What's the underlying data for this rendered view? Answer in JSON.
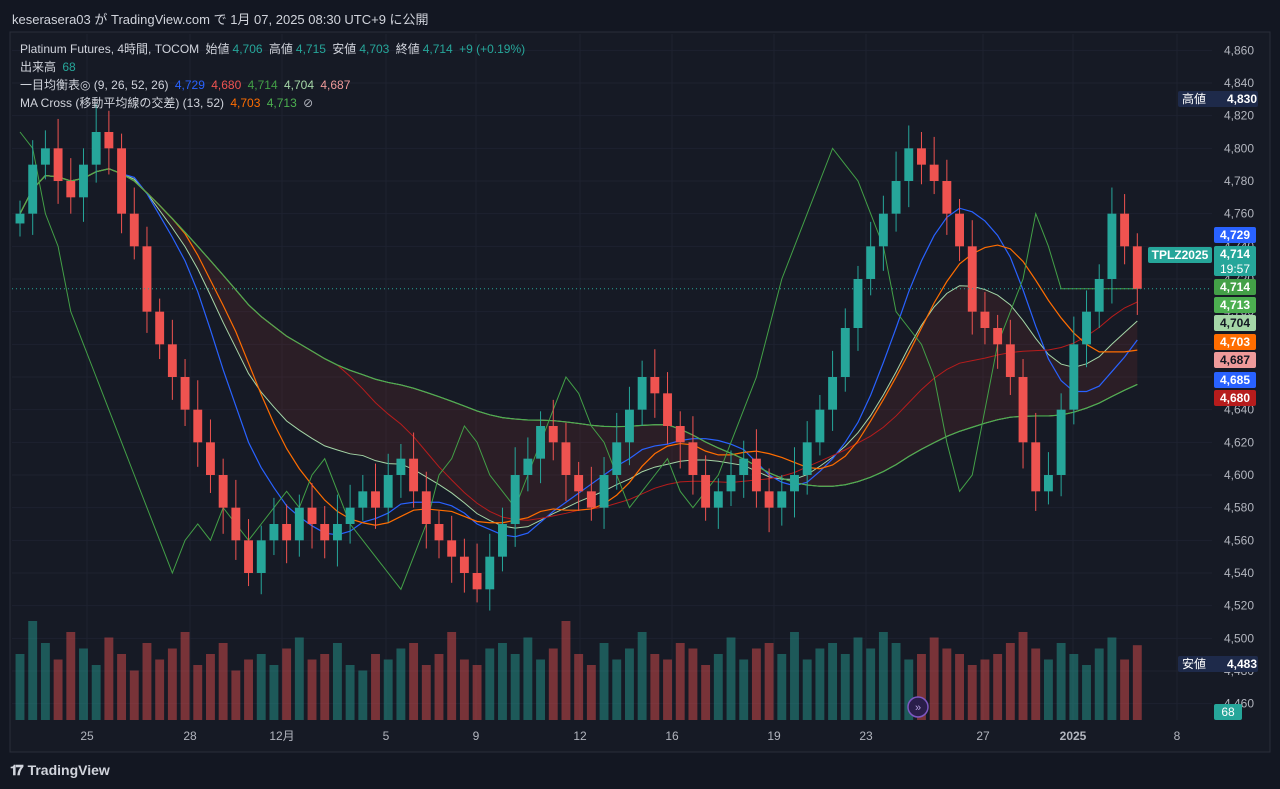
{
  "header": {
    "publish_text": "keserasera03 が TradingView.com で 1月 07, 2025 08:30 UTC+9 に公開"
  },
  "legend": {
    "symbol_line": {
      "name": "Platinum Futures, 4時間, TOCOM",
      "o_label": "始値",
      "o": "4,706",
      "h_label": "高値",
      "h": "4,715",
      "l_label": "安値",
      "l": "4,703",
      "c_label": "終値",
      "c": "4,714",
      "chg": "+9 (+0.19%)"
    },
    "volume_line": {
      "name": "出来高",
      "value": "68"
    },
    "ichimoku_line": {
      "name": "一目均衡表◎ (9, 26, 52, 26)",
      "v1": "4,729",
      "v2": "4,680",
      "v3": "4,714",
      "v4": "4,704",
      "v5": "4,687"
    },
    "ma_line": {
      "name": "MA Cross (移動平均線の交差) (13, 52)",
      "v1": "4,703",
      "v2": "4,713",
      "icon": "⊘"
    }
  },
  "colors": {
    "up": "#26a69a",
    "down": "#ef5350",
    "bg": "#161a25",
    "tenkan": "#2962ff",
    "kijun": "#b71c1c",
    "chikou": "#43a047",
    "spanA": "#a5d6a7",
    "spanB": "#ef9a9a",
    "ma_fast": "#ff6d00",
    "ma_slow": "#4caf50"
  },
  "price_axis": {
    "ticks": [
      "4,860",
      "4,840",
      "4,820",
      "4,800",
      "4,780",
      "4,760",
      "4,740",
      "4,720",
      "4,700",
      "4,680",
      "4,660",
      "4,640",
      "4,620",
      "4,600",
      "4,580",
      "4,560",
      "4,540",
      "4,520",
      "4,500",
      "4,480",
      "4,460"
    ]
  },
  "time_axis": {
    "ticks": [
      "25",
      "28",
      "12月",
      "5",
      "9",
      "12",
      "16",
      "19",
      "23",
      "27",
      "2025",
      "8"
    ]
  },
  "labels": {
    "high": {
      "caption": "高値",
      "value": "4,830"
    },
    "low": {
      "caption": "安値",
      "value": "4,483"
    },
    "symbol_tag": "TPLZ2025",
    "last_price": "4,714",
    "countdown": "19:57",
    "badges": [
      {
        "value": "4,729",
        "color": "#2962ff"
      },
      {
        "value": "4,714",
        "color": "#43a047"
      },
      {
        "value": "4,713",
        "color": "#4caf50"
      },
      {
        "value": "4,704",
        "color": "#a5d6a7"
      },
      {
        "value": "4,703",
        "color": "#ff6d00"
      },
      {
        "value": "4,687",
        "color": "#ef9a9a"
      },
      {
        "value": "4,685",
        "color": "#2962ff"
      },
      {
        "value": "4,680",
        "color": "#b71c1c"
      }
    ],
    "volume_badge": "68"
  },
  "chart_data": {
    "type": "candlestick",
    "symbol": "Platinum Futures",
    "timeframe": "4時間",
    "ylim": [
      4450,
      4870
    ],
    "close_path": [
      4760,
      4790,
      4800,
      4780,
      4770,
      4790,
      4810,
      4800,
      4760,
      4740,
      4700,
      4680,
      4660,
      4640,
      4620,
      4600,
      4580,
      4560,
      4540,
      4560,
      4570,
      4560,
      4580,
      4570,
      4560,
      4570,
      4580,
      4590,
      4580,
      4600,
      4610,
      4590,
      4570,
      4560,
      4550,
      4540,
      4530,
      4550,
      4570,
      4600,
      4610,
      4630,
      4620,
      4600,
      4590,
      4580,
      4600,
      4620,
      4640,
      4660,
      4650,
      4630,
      4620,
      4600,
      4580,
      4590,
      4600,
      4610,
      4590,
      4580,
      4590,
      4600,
      4620,
      4640,
      4660,
      4690,
      4720,
      4740,
      4760,
      4780,
      4800,
      4790,
      4780,
      4760,
      4740,
      4700,
      4690,
      4680,
      4660,
      4620,
      4590,
      4600,
      4640,
      4680,
      4700,
      4720,
      4760,
      4740,
      4714
    ],
    "volume_path": [
      60,
      90,
      70,
      55,
      80,
      65,
      50,
      75,
      60,
      45,
      70,
      55,
      65,
      80,
      50,
      60,
      70,
      45,
      55,
      60,
      50,
      65,
      75,
      55,
      60,
      70,
      50,
      45,
      60,
      55,
      65,
      70,
      50,
      60,
      80,
      55,
      50,
      65,
      70,
      60,
      75,
      55,
      65,
      90,
      60,
      50,
      70,
      55,
      65,
      80,
      60,
      55,
      70,
      65,
      50,
      60,
      75,
      55,
      65,
      70,
      60,
      80,
      55,
      65,
      70,
      60,
      75,
      65,
      80,
      70,
      55,
      60,
      75,
      65,
      60,
      50,
      55,
      60,
      70,
      80,
      65,
      55,
      70,
      60,
      50,
      65,
      75,
      55,
      68
    ]
  }
}
